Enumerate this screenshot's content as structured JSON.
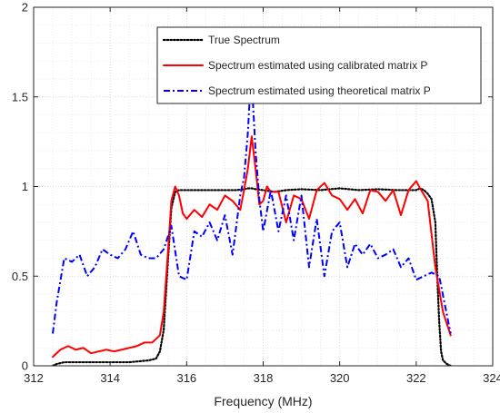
{
  "chart_data": {
    "type": "line",
    "title": "",
    "xlabel": "Frequency (MHz)",
    "ylabel": "",
    "xlim": [
      312,
      324
    ],
    "ylim": [
      0,
      2
    ],
    "grid": true,
    "grid_style": "dotted",
    "legend_position": "top-right",
    "x_ticks": [
      312,
      314,
      316,
      318,
      320,
      322,
      324
    ],
    "x_tick_labels": [
      "312",
      "314",
      "316",
      "318",
      "320",
      "322",
      "324"
    ],
    "y_ticks": [
      0,
      0.5,
      1,
      1.5,
      2
    ],
    "y_tick_labels": [
      "0",
      "0.5",
      "1",
      "1.5",
      "2"
    ],
    "series": [
      {
        "name": "True Spectrum",
        "color": "#000000",
        "style": "dotted",
        "x": [
          312.5,
          312.6,
          312.8,
          313.0,
          313.2,
          313.5,
          314.0,
          314.5,
          315.0,
          315.2,
          315.3,
          315.4,
          315.5,
          315.6,
          315.7,
          315.8,
          316.0,
          316.5,
          317.0,
          317.3,
          317.5,
          317.6,
          317.7,
          317.8,
          318.0,
          318.3,
          318.6,
          319.0,
          319.5,
          320.0,
          320.5,
          321.0,
          321.5,
          322.0,
          322.1,
          322.2,
          322.3,
          322.4,
          322.5,
          322.55,
          322.6,
          322.65,
          322.7,
          322.8,
          322.9
        ],
        "y": [
          0.0,
          0.01,
          0.02,
          0.02,
          0.02,
          0.02,
          0.02,
          0.02,
          0.03,
          0.04,
          0.08,
          0.2,
          0.55,
          0.88,
          0.97,
          0.98,
          0.98,
          0.98,
          0.98,
          0.98,
          0.985,
          0.99,
          0.99,
          0.985,
          0.98,
          0.97,
          0.98,
          0.985,
          0.98,
          0.99,
          0.98,
          0.985,
          0.98,
          0.98,
          0.99,
          0.98,
          0.96,
          0.93,
          0.8,
          0.5,
          0.25,
          0.08,
          0.03,
          0.01,
          0.0
        ]
      },
      {
        "name": "Spectrum estimated using calibrated matrix P",
        "color": "#ff0000",
        "style": "solid",
        "x": [
          312.5,
          312.7,
          312.9,
          313.1,
          313.3,
          313.5,
          313.7,
          313.9,
          314.1,
          314.3,
          314.5,
          314.7,
          314.9,
          315.1,
          315.3,
          315.4,
          315.5,
          315.6,
          315.7,
          315.8,
          315.9,
          316.0,
          316.2,
          316.4,
          316.6,
          316.8,
          317.0,
          317.2,
          317.4,
          317.5,
          317.6,
          317.7,
          317.8,
          317.9,
          318.0,
          318.1,
          318.2,
          318.4,
          318.6,
          318.8,
          319.0,
          319.2,
          319.4,
          319.6,
          319.8,
          320.0,
          320.2,
          320.4,
          320.6,
          320.8,
          321.0,
          321.2,
          321.4,
          321.6,
          321.8,
          322.0,
          322.1,
          322.3,
          322.5,
          322.7,
          322.9
        ],
        "y": [
          0.05,
          0.09,
          0.11,
          0.09,
          0.1,
          0.07,
          0.08,
          0.09,
          0.08,
          0.09,
          0.1,
          0.11,
          0.13,
          0.13,
          0.17,
          0.3,
          0.6,
          0.92,
          1.0,
          0.95,
          0.85,
          0.82,
          0.87,
          0.83,
          0.9,
          0.87,
          0.95,
          0.92,
          0.87,
          0.98,
          1.1,
          1.28,
          1.1,
          0.9,
          0.92,
          1.0,
          0.97,
          0.97,
          0.8,
          0.95,
          0.93,
          0.82,
          0.98,
          1.02,
          0.95,
          0.93,
          0.87,
          0.93,
          0.85,
          0.98,
          0.97,
          0.92,
          0.98,
          0.84,
          0.98,
          1.03,
          0.99,
          0.92,
          0.55,
          0.3,
          0.17
        ]
      },
      {
        "name": "Spectrum estimated using theoretical matrix P",
        "color": "#0000ff",
        "style": "dashdot",
        "x": [
          312.5,
          312.6,
          312.8,
          313.0,
          313.2,
          313.4,
          313.6,
          313.8,
          314.0,
          314.2,
          314.4,
          314.6,
          314.8,
          315.0,
          315.2,
          315.4,
          315.6,
          315.8,
          316.0,
          316.2,
          316.4,
          316.6,
          316.8,
          317.0,
          317.2,
          317.4,
          317.5,
          317.6,
          317.65,
          317.7,
          317.8,
          317.9,
          318.0,
          318.2,
          318.4,
          318.6,
          318.8,
          319.0,
          319.2,
          319.4,
          319.6,
          319.8,
          320.0,
          320.2,
          320.4,
          320.6,
          320.8,
          321.0,
          321.2,
          321.4,
          321.6,
          321.8,
          322.0,
          322.2,
          322.4,
          322.6,
          322.9
        ],
        "y": [
          0.18,
          0.35,
          0.6,
          0.58,
          0.62,
          0.5,
          0.55,
          0.65,
          0.62,
          0.6,
          0.65,
          0.75,
          0.62,
          0.6,
          0.6,
          0.65,
          0.78,
          0.5,
          0.48,
          0.75,
          0.72,
          0.8,
          0.7,
          0.84,
          0.62,
          0.95,
          1.05,
          1.3,
          1.5,
          1.6,
          1.2,
          0.93,
          0.75,
          0.98,
          0.75,
          0.95,
          0.7,
          0.95,
          0.55,
          0.82,
          0.5,
          0.75,
          0.8,
          0.55,
          0.68,
          0.62,
          0.68,
          0.6,
          0.62,
          0.65,
          0.55,
          0.6,
          0.48,
          0.5,
          0.52,
          0.5,
          0.18
        ]
      }
    ]
  }
}
